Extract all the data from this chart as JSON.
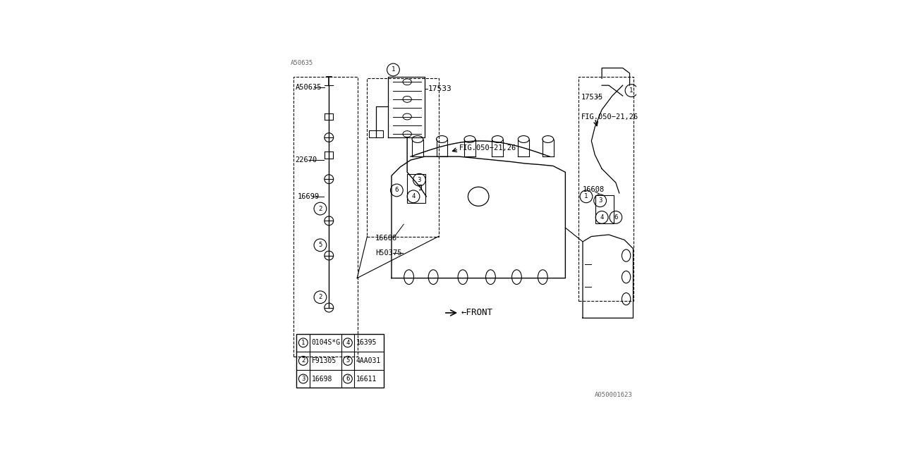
{
  "bg_color": "#ffffff",
  "line_color": "#000000",
  "font_color": "#000000",
  "legend_rows": [
    {
      "num": "1",
      "code": "0104S*G",
      "num2": "4",
      "code2": "16395"
    },
    {
      "num": "2",
      "code": "F91305",
      "num2": "5",
      "code2": "4AA031"
    },
    {
      "num": "3",
      "code": "16698",
      "num2": "6",
      "code2": "16611"
    }
  ],
  "watermark_tl": "A50635",
  "watermark_br": "A050001623"
}
